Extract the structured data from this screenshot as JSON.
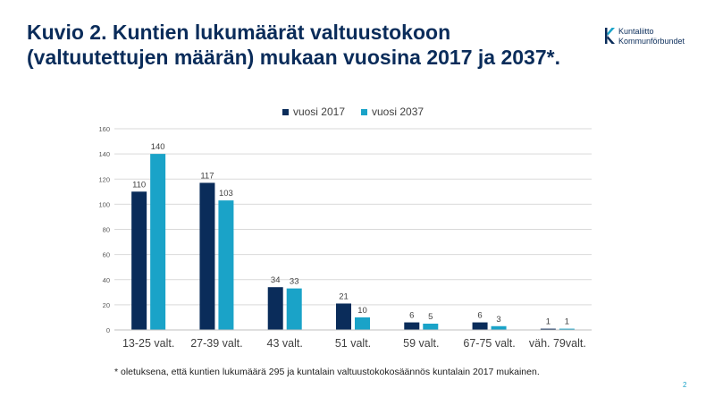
{
  "slide": {
    "title": "Kuvio 2. Kuntien lukumäärät valtuustokoon (valtuutettujen määrän) mukaan vuosina 2017 ja 2037*.",
    "footnote": "* oletuksena, että kuntien lukumäärä 295 ja kuntalain valtuustokokosäännös kuntalain 2017 mukainen.",
    "page_number": "2"
  },
  "logo": {
    "line1": "Kuntaliitto",
    "line2": "Kommunförbundet"
  },
  "colors": {
    "series_2017": "#0a2c5a",
    "series_2037": "#1aa3c8",
    "title": "#0a2c5a",
    "grid": "#d9d9d9"
  },
  "chart_data": {
    "type": "bar",
    "categories": [
      "13-25 valt.",
      "27-39 valt.",
      "43 valt.",
      "51 valt.",
      "59 valt.",
      "67-75 valt.",
      "väh. 79valt."
    ],
    "series": [
      {
        "name": "vuosi 2017",
        "values": [
          110,
          117,
          34,
          21,
          6,
          6,
          1
        ]
      },
      {
        "name": "vuosi 2037",
        "values": [
          140,
          103,
          33,
          10,
          5,
          3,
          1
        ]
      }
    ],
    "yticks": [
      0,
      20,
      40,
      60,
      80,
      100,
      120,
      140,
      160
    ],
    "ylim": [
      0,
      160
    ],
    "grid": true,
    "legend_position": "top-center",
    "data_labels": true
  }
}
